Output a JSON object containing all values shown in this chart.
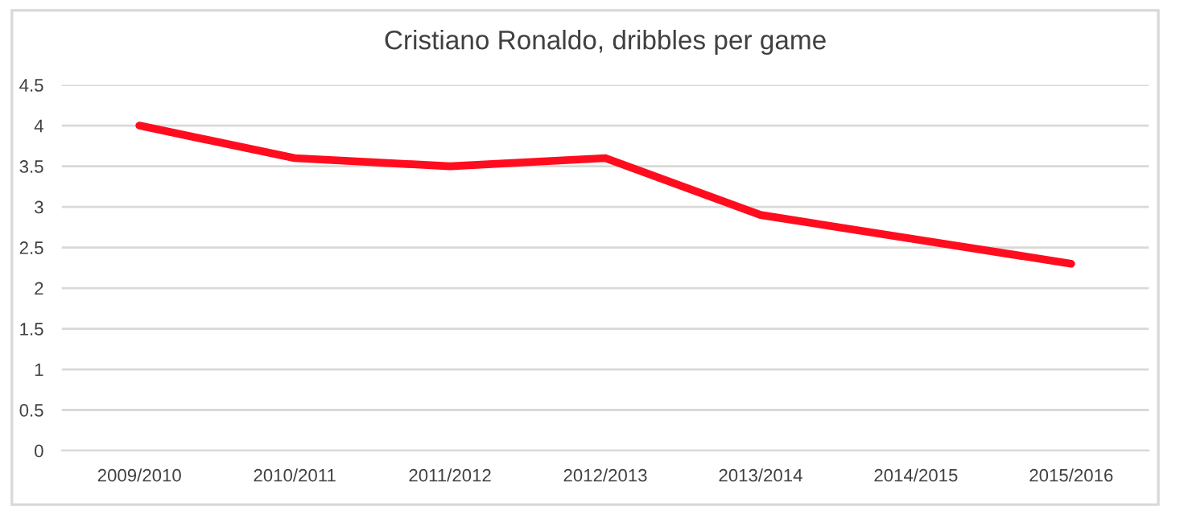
{
  "chart_data": {
    "type": "line",
    "title": "Cristiano Ronaldo, dribbles per game",
    "categories": [
      "2009/2010",
      "2010/2011",
      "2011/2012",
      "2012/2013",
      "2013/2014",
      "2014/2015",
      "2015/2016"
    ],
    "series": [
      {
        "color": "#ff0d1f",
        "values": [
          4.0,
          3.6,
          3.5,
          3.6,
          2.9,
          2.6,
          2.3
        ]
      }
    ],
    "ylim": [
      0,
      4.5
    ],
    "yticks": [
      0,
      0.5,
      1,
      1.5,
      2,
      2.5,
      3,
      3.5,
      4,
      4.5
    ],
    "grid": "y",
    "legend": false,
    "marker": "none",
    "line_style": "solid"
  }
}
